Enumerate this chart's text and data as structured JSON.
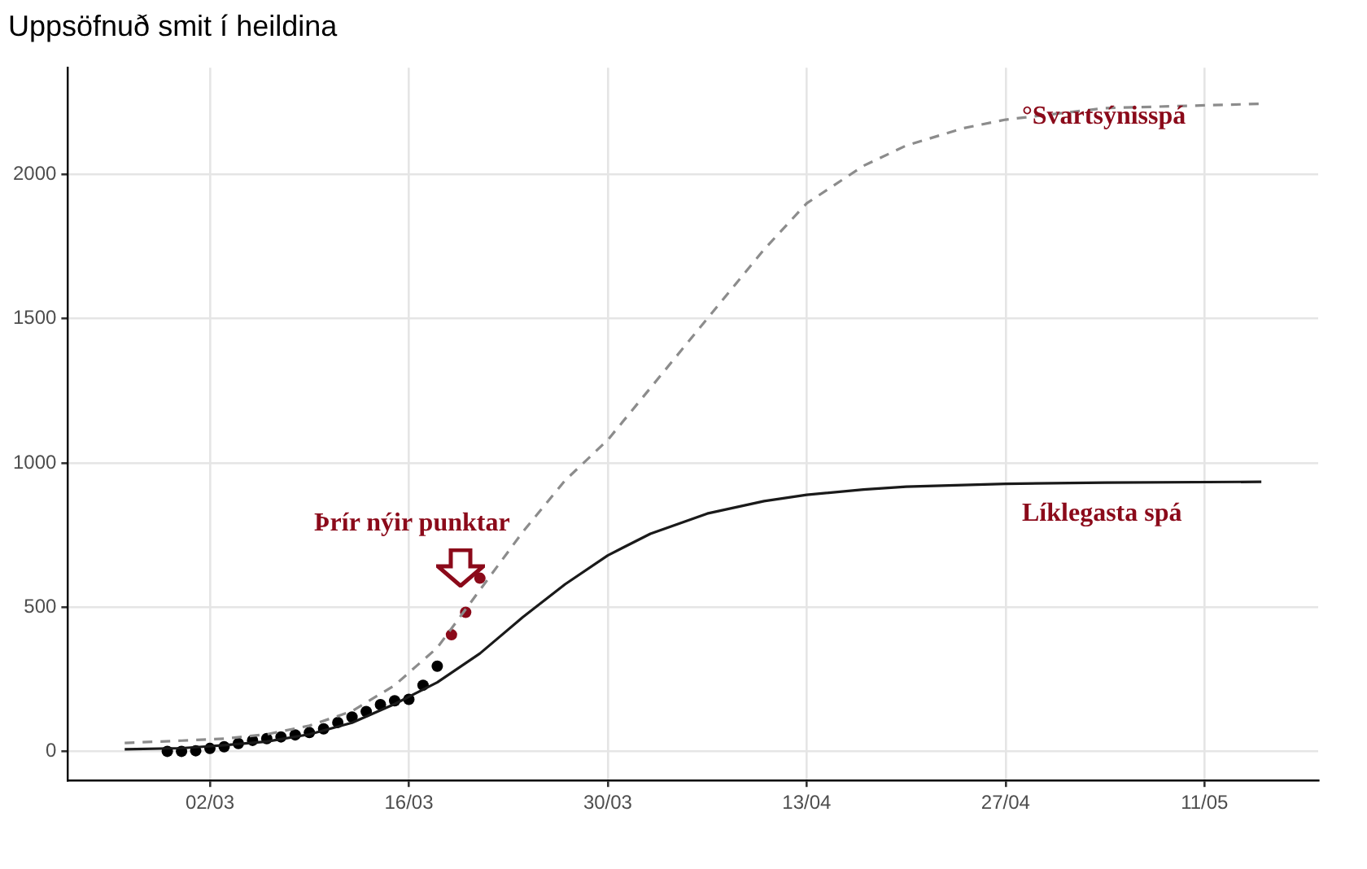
{
  "chart_data": {
    "type": "line",
    "title": "Uppsöfnuð smit í heildina",
    "xlim": [
      "--02-21",
      "--05-19"
    ],
    "ylim": [
      -100,
      2370
    ],
    "xticks": [
      {
        "value": "--03-02",
        "label": "02/03"
      },
      {
        "value": "--03-16",
        "label": "16/03"
      },
      {
        "value": "--03-30",
        "label": "30/03"
      },
      {
        "value": "--04-13",
        "label": "13/04"
      },
      {
        "value": "--04-27",
        "label": "27/04"
      },
      {
        "value": "--05-11",
        "label": "11/05"
      }
    ],
    "yticks": [
      0,
      500,
      1000,
      1500,
      2000
    ],
    "grid": true,
    "legend": false,
    "series": [
      {
        "line_style": "dashed",
        "marker": "none",
        "color": "#8c8c8c",
        "x": [
          "--02-25",
          "--02-29",
          "--03-03",
          "--03-06",
          "--03-09",
          "--03-12",
          "--03-15",
          "--03-18",
          "--03-21",
          "--03-24",
          "--03-27",
          "--03-30",
          "--04-02",
          "--04-06",
          "--04-10",
          "--04-13",
          "--04-17",
          "--04-20",
          "--04-24",
          "--04-27",
          "--05-04",
          "--05-15"
        ],
        "values": [
          30,
          38,
          45,
          60,
          90,
          140,
          230,
          360,
          560,
          760,
          940,
          1080,
          1260,
          1500,
          1740,
          1900,
          2030,
          2100,
          2160,
          2190,
          2230,
          2245
        ]
      },
      {
        "line_style": "solid",
        "marker": "none",
        "color": "#1a1a1a",
        "x": [
          "--02-25",
          "--02-29",
          "--03-03",
          "--03-06",
          "--03-09",
          "--03-12",
          "--03-15",
          "--03-18",
          "--03-21",
          "--03-24",
          "--03-27",
          "--03-30",
          "--04-02",
          "--04-06",
          "--04-10",
          "--04-13",
          "--04-17",
          "--04-20",
          "--04-27",
          "--05-04",
          "--05-15"
        ],
        "values": [
          8,
          12,
          22,
          35,
          60,
          100,
          165,
          240,
          340,
          465,
          580,
          680,
          755,
          825,
          868,
          890,
          908,
          918,
          928,
          932,
          935
        ]
      },
      {
        "type": "scatter",
        "marker": "circle",
        "color": "#000000",
        "x": [
          "--02-28",
          "--02-29",
          "--03-01",
          "--03-02",
          "--03-03",
          "--03-04",
          "--03-05",
          "--03-06",
          "--03-07",
          "--03-08",
          "--03-09",
          "--03-10",
          "--03-11",
          "--03-12",
          "--03-13",
          "--03-14",
          "--03-15",
          "--03-16",
          "--03-17",
          "--03-18"
        ],
        "values": [
          1,
          1,
          3,
          11,
          17,
          28,
          39,
          45,
          51,
          58,
          66,
          79,
          101,
          120,
          139,
          163,
          176,
          181,
          230,
          296
        ]
      },
      {
        "type": "scatter",
        "marker": "circle",
        "color": "#8b0a1a",
        "x": [
          "--03-19",
          "--03-20",
          "--03-21"
        ],
        "values": [
          405,
          483,
          601
        ]
      }
    ],
    "annotations": [
      "Þrír nýir punktar",
      "°Svartsýnisspá",
      "Líklegasta spá"
    ]
  }
}
